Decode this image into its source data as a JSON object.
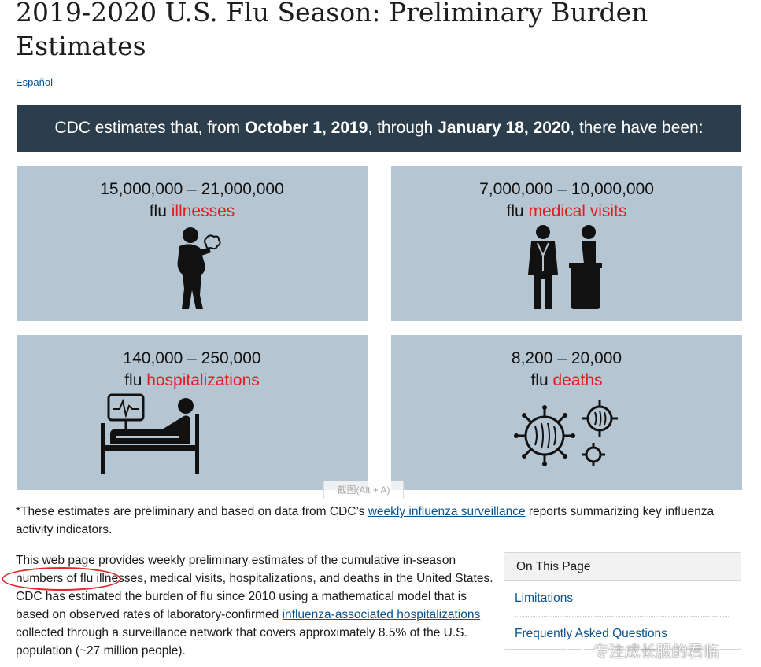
{
  "page": {
    "title": "2019-2020 U.S. Flu Season: Preliminary Burden Estimates",
    "language_link": "Español"
  },
  "banner": {
    "prefix": "CDC estimates that, from ",
    "start_date": "October 1, 2019",
    "middle": ", through ",
    "end_date": "January 18, 2020",
    "suffix": ", there have been:"
  },
  "cards": [
    {
      "range": "15,000,000 – 21,000,000",
      "prefix": "flu ",
      "highlight": "illnesses",
      "icon": "sick-person-icon"
    },
    {
      "range": "7,000,000 – 10,000,000",
      "prefix": "flu ",
      "highlight": "medical visits",
      "icon": "doctor-patient-icon"
    },
    {
      "range": "140,000 – 250,000",
      "prefix": "flu ",
      "highlight": "hospitalizations",
      "icon": "hospital-bed-icon"
    },
    {
      "range": "8,200 – 20,000",
      "prefix": "flu ",
      "highlight": "deaths",
      "icon": "virus-icon"
    }
  ],
  "footnote": {
    "before": "*These estimates are preliminary and based on data from CDC’s ",
    "link": "weekly influenza surveillance",
    "after": " reports summarizing key influenza activity indicators."
  },
  "intro": {
    "before": "This web page provides weekly preliminary estimates of the cumulative in-season numbers of flu illnesses, medical visits, hospitalizations, and deaths in the United States. CDC has estimated the burden of flu since 2010 using a mathematical model that is based on observed rates of laboratory-confirmed ",
    "link": "influenza-associated hospitalizations",
    "after": " collected through a surveillance network that covers approximately 8.5% of the U.S. population (~27 million people)."
  },
  "toc": {
    "heading": "On This Page",
    "items": [
      "Limitations",
      "Frequently Asked Questions"
    ]
  },
  "overlays": {
    "screenshot_hint": "截图(Alt + A)",
    "weibo_watermark": "专注成长股的君临"
  },
  "colors": {
    "banner_bg": "#2c3e4c",
    "card_bg": "#b6c5d2",
    "highlight_red": "#e31b23",
    "link_blue": "#075290"
  }
}
